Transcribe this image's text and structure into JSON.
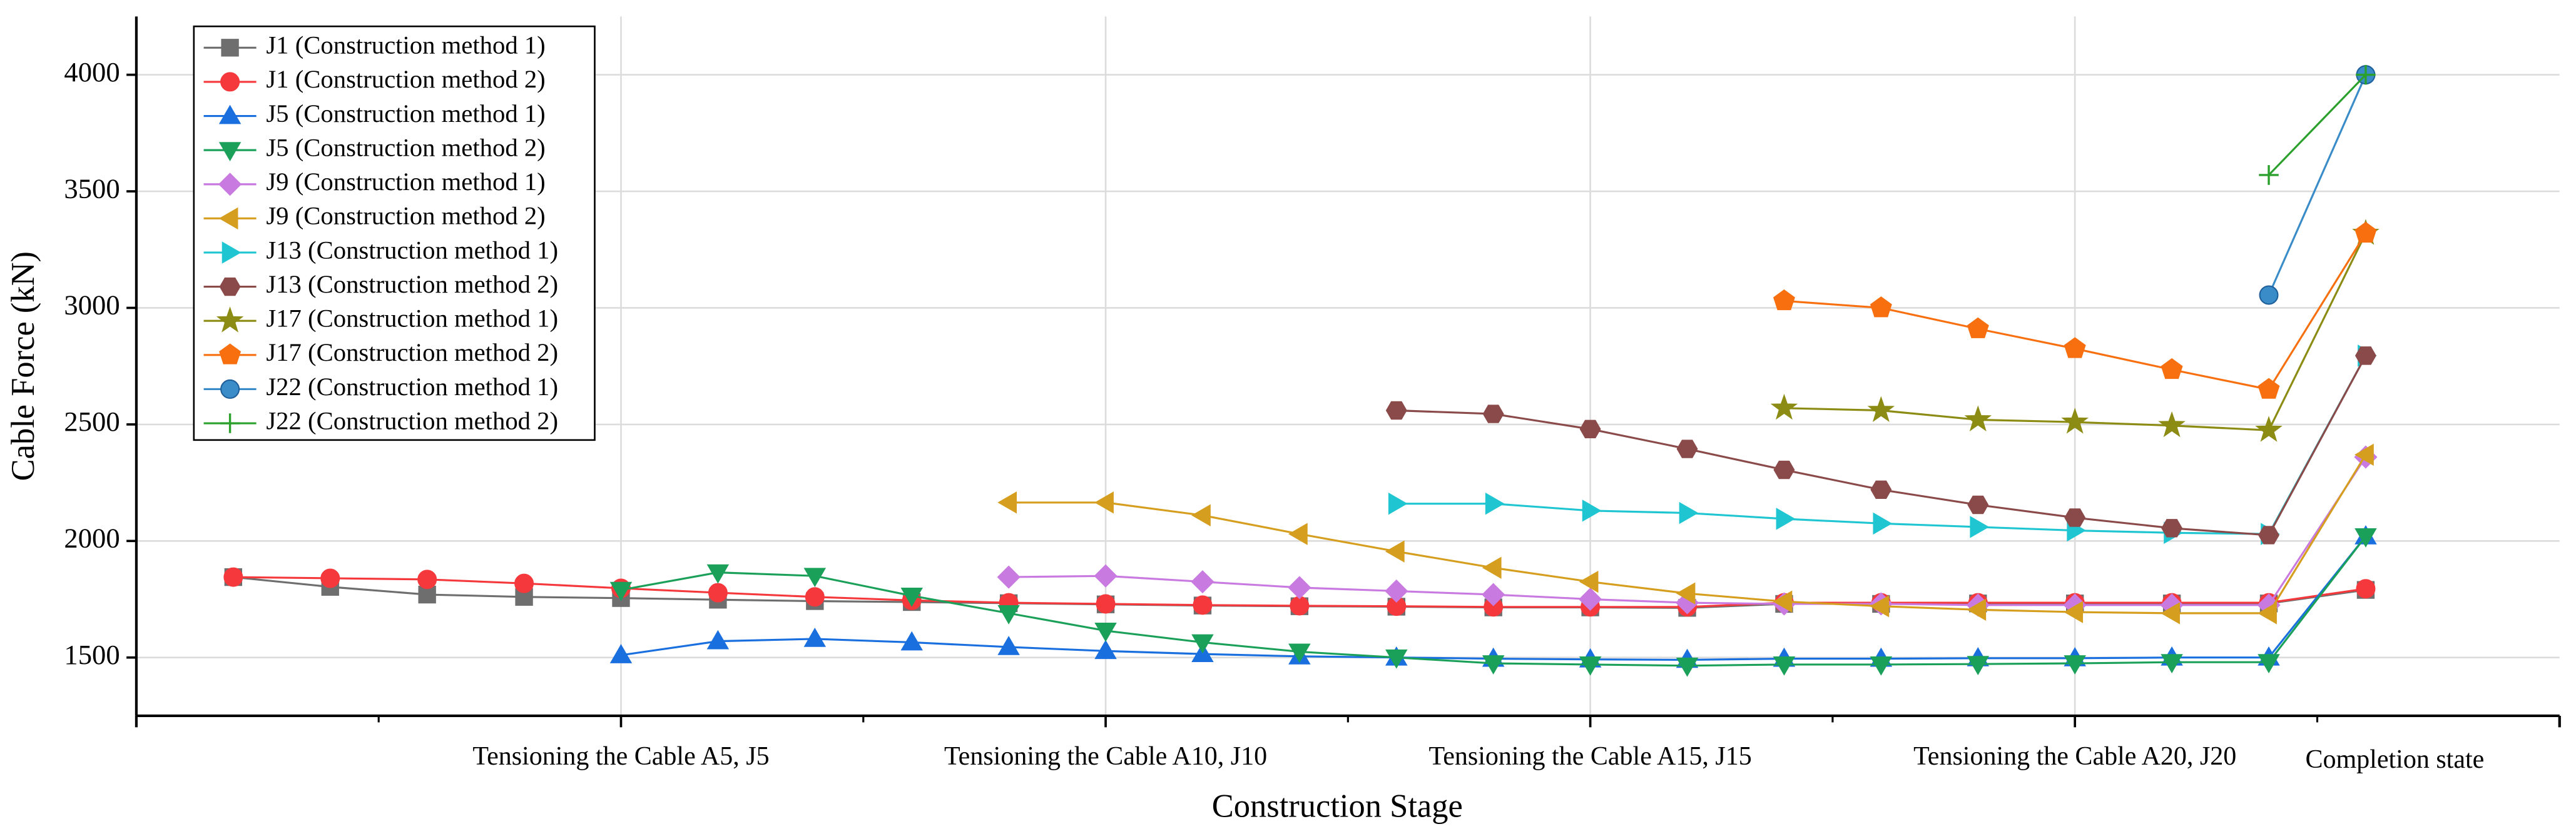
{
  "chart_data": {
    "type": "line",
    "xlabel": "Construction Stage",
    "ylabel": "Cable Force (kN)",
    "x": [
      1,
      2,
      3,
      4,
      5,
      6,
      7,
      8,
      9,
      10,
      11,
      12,
      13,
      14,
      15,
      16,
      17,
      18,
      19,
      20,
      21,
      22,
      23
    ],
    "xlim": [
      0,
      25
    ],
    "xticks": [
      {
        "value": 5,
        "label": "Tensioning the Cable A5, J5"
      },
      {
        "value": 10,
        "label": "Tensioning the Cable A10, J10"
      },
      {
        "value": 15,
        "label": "Tensioning the Cable A15, J15"
      },
      {
        "value": 20,
        "label": "Tensioning the Cable A20, J20"
      }
    ],
    "xminor_ticks": [
      2.5,
      7.5,
      12.5,
      17.5,
      22.5
    ],
    "x_end_label": {
      "value": 23.3,
      "label": "Completion state"
    },
    "ylim": [
      1250,
      4250
    ],
    "yticks": [
      1500,
      2000,
      2500,
      3000,
      3500,
      4000
    ],
    "grid": true,
    "legend": "upper left",
    "series": [
      {
        "name": "J1 (Construction method 1)",
        "color": "#6e6e6e",
        "marker": "square",
        "values": [
          1845,
          1803,
          1770,
          1760,
          1755,
          1748,
          1742,
          1738,
          1733,
          1728,
          1723,
          1720,
          1718,
          1715,
          1715,
          1713,
          1730,
          1730,
          1732,
          1732,
          1732,
          1732,
          1790
        ]
      },
      {
        "name": "J1 (Construction method 2)",
        "color": "#f5383c",
        "marker": "circle",
        "values": [
          1845,
          1840,
          1835,
          1818,
          1797,
          1778,
          1760,
          1745,
          1735,
          1730,
          1725,
          1722,
          1720,
          1717,
          1717,
          1717,
          1735,
          1735,
          1735,
          1735,
          1735,
          1735,
          1795
        ]
      },
      {
        "name": "J5 (Construction method 1)",
        "color": "#1a6fdf",
        "marker": "triangle-up",
        "values": [
          null,
          null,
          null,
          null,
          1510,
          1570,
          1580,
          1565,
          1545,
          1528,
          1515,
          1505,
          1500,
          1495,
          1492,
          1490,
          1495,
          1495,
          1497,
          1497,
          1500,
          1500,
          2020
        ]
      },
      {
        "name": "J5 (Construction method 2)",
        "color": "#1ba05a",
        "marker": "triangle-down",
        "values": [
          null,
          null,
          null,
          null,
          1790,
          1865,
          1850,
          1765,
          1690,
          1615,
          1565,
          1525,
          1500,
          1475,
          1470,
          1465,
          1470,
          1470,
          1472,
          1475,
          1480,
          1480,
          2020
        ]
      },
      {
        "name": "J9 (Construction method 1)",
        "color": "#c97ae0",
        "marker": "diamond",
        "values": [
          null,
          null,
          null,
          null,
          null,
          null,
          null,
          null,
          1845,
          1850,
          1825,
          1800,
          1785,
          1770,
          1750,
          1735,
          1730,
          1730,
          1725,
          1725,
          1725,
          1725,
          2360
        ]
      },
      {
        "name": "J9 (Construction method 2)",
        "color": "#d69e1e",
        "marker": "triangle-left",
        "values": [
          null,
          null,
          null,
          null,
          null,
          null,
          null,
          null,
          2165,
          2165,
          2110,
          2030,
          1955,
          1885,
          1825,
          1775,
          1740,
          1720,
          1705,
          1695,
          1690,
          1690,
          2370
        ]
      },
      {
        "name": "J13 (Construction method 1)",
        "color": "#1fc6d2",
        "marker": "triangle-right",
        "values": [
          null,
          null,
          null,
          null,
          null,
          null,
          null,
          null,
          null,
          null,
          null,
          null,
          2160,
          2160,
          2130,
          2120,
          2095,
          2075,
          2060,
          2045,
          2035,
          2030,
          2795
        ]
      },
      {
        "name": "J13 (Construction method 2)",
        "color": "#8b4a4a",
        "marker": "hexagon",
        "values": [
          null,
          null,
          null,
          null,
          null,
          null,
          null,
          null,
          null,
          null,
          null,
          null,
          2560,
          2545,
          2480,
          2395,
          2305,
          2220,
          2155,
          2100,
          2055,
          2025,
          2795
        ]
      },
      {
        "name": "J17 (Construction method 1)",
        "color": "#8c8c14",
        "marker": "star",
        "values": [
          null,
          null,
          null,
          null,
          null,
          null,
          null,
          null,
          null,
          null,
          null,
          null,
          null,
          null,
          null,
          null,
          2570,
          2560,
          2520,
          2510,
          2495,
          2475,
          3320
        ]
      },
      {
        "name": "J17 (Construction method 2)",
        "color": "#f76f0f",
        "marker": "pentagon",
        "values": [
          null,
          null,
          null,
          null,
          null,
          null,
          null,
          null,
          null,
          null,
          null,
          null,
          null,
          null,
          null,
          null,
          3030,
          3000,
          2910,
          2825,
          2735,
          2650,
          3320
        ]
      },
      {
        "name": "J22 (Construction method  1)",
        "color": "#3a8cc9",
        "marker": "sphere",
        "values": [
          null,
          null,
          null,
          null,
          null,
          null,
          null,
          null,
          null,
          null,
          null,
          null,
          null,
          null,
          null,
          null,
          null,
          null,
          null,
          null,
          null,
          3055,
          4000
        ]
      },
      {
        "name": "J22 (Construction method 2)",
        "color": "#2ca02c",
        "marker": "plus",
        "values": [
          null,
          null,
          null,
          null,
          null,
          null,
          null,
          null,
          null,
          null,
          null,
          null,
          null,
          null,
          null,
          null,
          null,
          null,
          null,
          null,
          null,
          3570,
          4000
        ]
      }
    ]
  }
}
